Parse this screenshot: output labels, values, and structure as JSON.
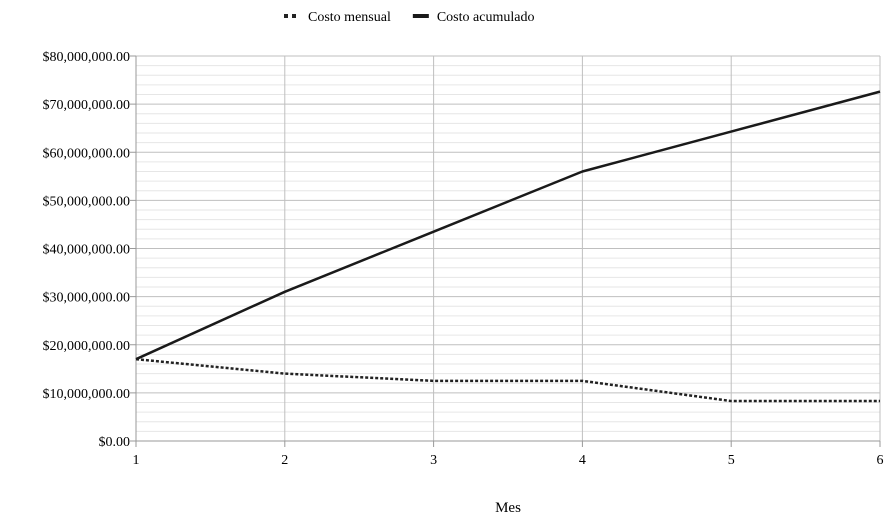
{
  "chart_data": {
    "type": "line",
    "title": "",
    "xlabel": "Mes",
    "ylabel": "",
    "x": [
      1,
      2,
      3,
      4,
      5,
      6
    ],
    "ylim": [
      0,
      80000000
    ],
    "y_ticks": [
      0,
      10000000,
      20000000,
      30000000,
      40000000,
      50000000,
      60000000,
      70000000,
      80000000
    ],
    "y_tick_labels": [
      "$0.00",
      "$10,000,000.00",
      "$20,000,000.00",
      "$30,000,000.00",
      "$40,000,000.00",
      "$50,000,000.00",
      "$60,000,000.00",
      "$70,000,000.00",
      "$80,000,000.00"
    ],
    "x_tick_labels": [
      "1",
      "2",
      "3",
      "4",
      "5",
      "6"
    ],
    "grid": true,
    "legend_position": "top-center",
    "series": [
      {
        "name": "Costo mensual",
        "style": "dotted",
        "color": "#222222",
        "values": [
          17000000,
          14000000,
          12500000,
          12500000,
          8300000,
          8300000
        ]
      },
      {
        "name": "Costo acumulado",
        "style": "solid",
        "color": "#1a1a1a",
        "values": [
          17000000,
          31000000,
          43500000,
          56000000,
          64300000,
          72600000
        ]
      }
    ]
  }
}
